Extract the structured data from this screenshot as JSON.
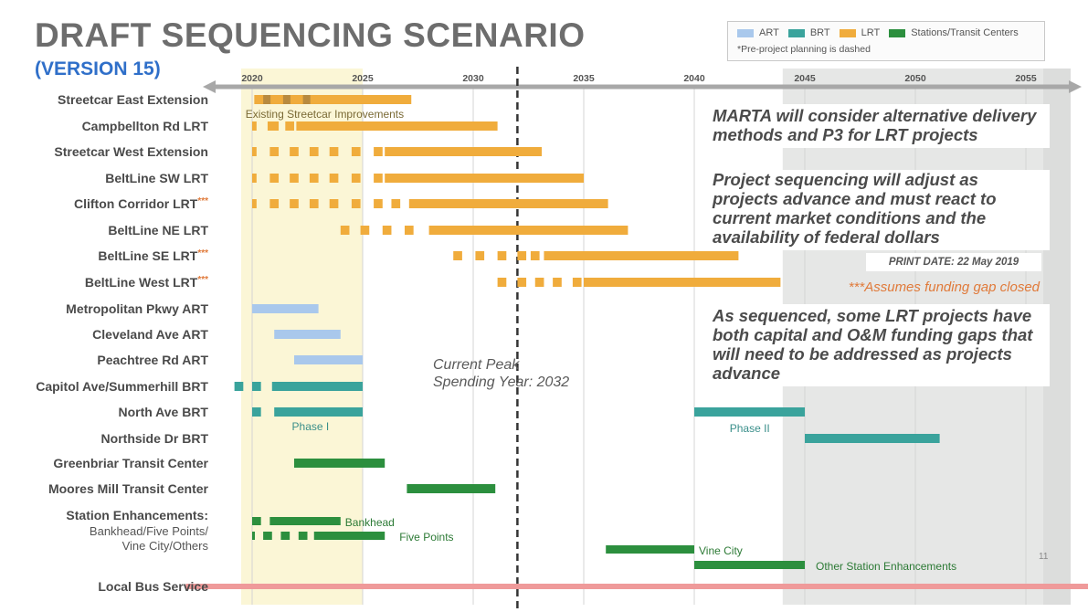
{
  "title": "DRAFT SEQUENCING SCENARIO",
  "subtitle": "(VERSION 15)",
  "legend_note": "*Pre-project planning is dashed",
  "notes": [
    "MARTA will consider alternative delivery methods and P3 for LRT projects",
    "Project sequencing will adjust as projects advance and must react to current market conditions and the availability of federal dollars",
    "As sequenced, some LRT projects have both capital and O&M funding gaps that will need to be addressed as projects advance"
  ],
  "print_date": "PRINT DATE: 22 May 2019",
  "assumes_note": "***Assumes funding gap closed",
  "peak_label": [
    "Current Peak",
    "Spending Year: 2032"
  ],
  "page_number": "11",
  "colors": {
    "ART": "#a9c8ec",
    "BRT": "#3aa39c",
    "LRT": "#f0ac3c",
    "Stations": "#2c8f3e",
    "Bus": "#ef9a9a",
    "near_term_band": "#fbf6d6",
    "far_band": "#e6e7e6",
    "axis": "#a8a8a8",
    "peak_line": "#333333"
  },
  "chart_data": {
    "type": "gantt",
    "x_ticks": [
      2020,
      2025,
      2030,
      2035,
      2040,
      2045,
      2050,
      2055
    ],
    "xlim": [
      2018.5,
      2057.5
    ],
    "peak_year": 2032,
    "legend": [
      {
        "label": "ART",
        "type": "ART"
      },
      {
        "label": "BRT",
        "type": "BRT"
      },
      {
        "label": "LRT",
        "type": "LRT"
      },
      {
        "label": "Stations/Transit Centers",
        "type": "Stations"
      }
    ],
    "rows": [
      {
        "label": "Streetcar East Extension",
        "type": "LRT",
        "dashed": [
          [
            2020.1,
            2020.5
          ],
          [
            2021.0,
            2021.4
          ],
          [
            2022.0,
            2022.4
          ],
          [
            2022.8,
            2023.3
          ]
        ],
        "solid": [
          [
            2020.1,
            2027.2
          ]
        ]
      },
      {
        "label": "Campbellton Rd LRT",
        "type": "LRT",
        "dashed": [
          [
            2020.0,
            2020.2
          ],
          [
            2020.7,
            2021.2
          ],
          [
            2021.5,
            2021.9
          ]
        ],
        "solid": [
          [
            2022.0,
            2031.1
          ]
        ]
      },
      {
        "label": "Streetcar West Extension",
        "type": "LRT",
        "dashed": [
          [
            2020.0,
            2020.2
          ],
          [
            2020.8,
            2021.2
          ],
          [
            2021.7,
            2022.1
          ],
          [
            2022.6,
            2023.0
          ],
          [
            2023.5,
            2023.9
          ],
          [
            2024.5,
            2024.9
          ],
          [
            2025.5,
            2025.9
          ]
        ],
        "solid": [
          [
            2026.0,
            2033.1
          ]
        ]
      },
      {
        "label": "BeltLine SW LRT",
        "type": "LRT",
        "dashed": [
          [
            2020.0,
            2020.2
          ],
          [
            2020.8,
            2021.2
          ],
          [
            2021.7,
            2022.1
          ],
          [
            2022.6,
            2023.0
          ],
          [
            2023.5,
            2023.9
          ],
          [
            2024.5,
            2024.9
          ],
          [
            2025.5,
            2025.9
          ]
        ],
        "solid": [
          [
            2026.0,
            2035.0
          ]
        ]
      },
      {
        "label": "Clifton Corridor LRT",
        "stars": "***",
        "type": "LRT",
        "dashed": [
          [
            2020.0,
            2020.2
          ],
          [
            2020.8,
            2021.2
          ],
          [
            2021.7,
            2022.1
          ],
          [
            2022.6,
            2023.0
          ],
          [
            2023.5,
            2023.9
          ],
          [
            2024.5,
            2024.9
          ],
          [
            2025.5,
            2025.9
          ],
          [
            2026.3,
            2026.7
          ]
        ],
        "solid": [
          [
            2027.1,
            2036.1
          ]
        ]
      },
      {
        "label": "BeltLine NE LRT",
        "type": "LRT",
        "dashed": [
          [
            2024.0,
            2024.4
          ],
          [
            2024.9,
            2025.3
          ],
          [
            2025.9,
            2026.3
          ],
          [
            2026.9,
            2027.3
          ]
        ],
        "solid": [
          [
            2028.0,
            2037.0
          ]
        ]
      },
      {
        "label": "BeltLine SE LRT",
        "stars": "***",
        "type": "LRT",
        "dashed": [
          [
            2029.1,
            2029.5
          ],
          [
            2030.1,
            2030.5
          ],
          [
            2031.1,
            2031.5
          ],
          [
            2032.0,
            2032.4
          ],
          [
            2032.6,
            2033.0
          ]
        ],
        "solid": [
          [
            2033.2,
            2042.0
          ]
        ]
      },
      {
        "label": "BeltLine West LRT",
        "stars": "***",
        "type": "LRT",
        "dashed": [
          [
            2031.1,
            2031.5
          ],
          [
            2032.0,
            2032.4
          ],
          [
            2032.8,
            2033.2
          ],
          [
            2033.6,
            2034.0
          ],
          [
            2034.5,
            2034.9
          ]
        ],
        "solid": [
          [
            2035.0,
            2043.9
          ]
        ]
      },
      {
        "label": "Metropolitan Pkwy ART",
        "type": "ART",
        "dashed": [],
        "solid": [
          [
            2020.0,
            2023.0
          ]
        ]
      },
      {
        "label": "Cleveland Ave ART",
        "type": "ART",
        "dashed": [],
        "solid": [
          [
            2021.0,
            2024.0
          ]
        ]
      },
      {
        "label": "Peachtree Rd ART",
        "type": "ART",
        "dashed": [],
        "solid": [
          [
            2021.9,
            2025.0
          ]
        ]
      },
      {
        "label": "Capitol Ave/Summerhill BRT",
        "type": "BRT",
        "dashed": [
          [
            2019.2,
            2019.6
          ],
          [
            2020.0,
            2020.4
          ]
        ],
        "solid": [
          [
            2020.9,
            2025.0
          ]
        ]
      },
      {
        "label": "North Ave BRT",
        "type": "BRT",
        "dashed": [
          [
            2020.0,
            2020.4
          ]
        ],
        "solid": [
          [
            2021.0,
            2025.0
          ],
          [
            2040.0,
            2045.0
          ]
        ]
      },
      {
        "label": "Northside Dr BRT",
        "type": "BRT",
        "dashed": [],
        "solid": [
          [
            2045.0,
            2051.1
          ]
        ]
      },
      {
        "label": "Greenbriar Transit Center",
        "type": "Stations",
        "dashed": [],
        "solid": [
          [
            2021.9,
            2026.0
          ]
        ]
      },
      {
        "label": "Moores Mill Transit Center",
        "type": "Stations",
        "dashed": [],
        "solid": [
          [
            2027.0,
            2031.0
          ]
        ]
      },
      {
        "label": "Station Enhancements:",
        "sub": [
          "Bankhead/Five Points/",
          "Vine City/Others"
        ],
        "type": "Stations",
        "dashed": [],
        "solid": []
      },
      {
        "label": "Local Bus Service",
        "type": "Bus",
        "dashed": [],
        "solid": [
          [
            2017.0,
            2058.0
          ]
        ]
      }
    ],
    "station_bars": [
      {
        "name": "Bankhead",
        "dashed": [
          [
            2020.0,
            2020.4
          ]
        ],
        "solid": [
          [
            2020.8,
            2024.0
          ]
        ]
      },
      {
        "name": "Five Points",
        "dashed": [
          [
            2020.0,
            2020.1
          ],
          [
            2020.5,
            2020.9
          ],
          [
            2021.3,
            2021.7
          ],
          [
            2022.1,
            2022.5
          ]
        ],
        "solid": [
          [
            2022.8,
            2026.0
          ]
        ]
      },
      {
        "name": "Vine City",
        "dashed": [],
        "solid": [
          [
            2036.0,
            2040.0
          ]
        ]
      },
      {
        "name": "Other Station Enhancements",
        "dashed": [],
        "solid": [
          [
            2040.0,
            2045.0
          ]
        ]
      }
    ],
    "annotations": [
      {
        "text": "Existing Streetcar Improvements",
        "x": 2019.7,
        "row": "Streetcar East Extension"
      },
      {
        "text": "Phase I",
        "x": 2021.8,
        "row": "North Ave BRT"
      },
      {
        "text": "Phase II",
        "x": 2041.6,
        "row": "North Ave BRT"
      }
    ]
  }
}
